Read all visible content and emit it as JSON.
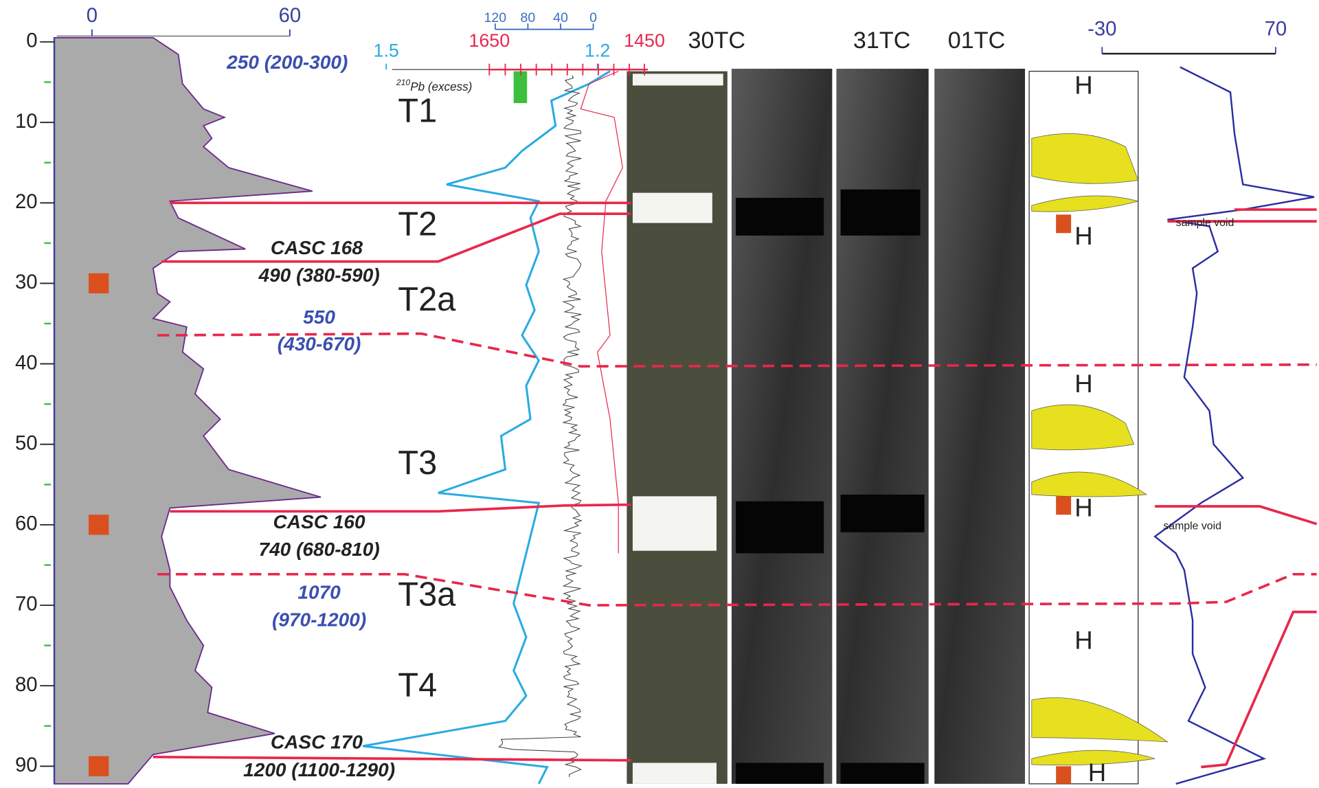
{
  "depth_axis": {
    "ticks": [
      0,
      10,
      20,
      30,
      40,
      50,
      60,
      70,
      80,
      90
    ]
  },
  "top_axis": {
    "ticks": [
      0,
      60
    ]
  },
  "age_axis": {
    "ticks": [
      120,
      80,
      40,
      0
    ]
  },
  "pb_axis": {
    "ticks": [
      1.5,
      1.2
    ],
    "superscript": "210",
    "label": "Pb (excess)"
  },
  "density_axis": {
    "ticks": [
      1650,
      1450
    ]
  },
  "right_axis": {
    "ticks": [
      -30,
      70
    ]
  },
  "cores": [
    "30TC",
    "31TC",
    "01TC"
  ],
  "units": [
    "T1",
    "T2",
    "T2a",
    "T3",
    "T3a",
    "T4"
  ],
  "dates": [
    {
      "name": "CASC 168",
      "age": "490 (380-590)"
    },
    {
      "name": "CASC 160",
      "age": "740 (680-810)"
    },
    {
      "name": "CASC 170",
      "age": "1200 (1100-1290)"
    }
  ],
  "model_ages": [
    "250 (200-300)",
    "550",
    "(430-670)",
    "1070",
    "(970-1200)"
  ],
  "facies": [
    "H",
    "H",
    "H",
    "H",
    "H",
    "H"
  ],
  "notes": [
    "sample void",
    "sample void"
  ]
}
